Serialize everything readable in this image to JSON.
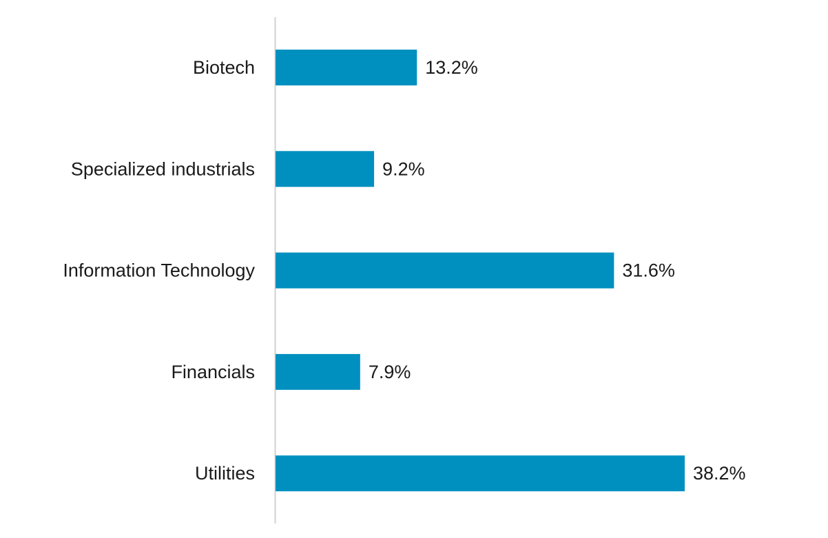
{
  "chart_data": {
    "type": "bar",
    "orientation": "horizontal",
    "categories": [
      "Biotech",
      "Specialized industrials",
      "Information Technology",
      "Financials",
      "Utilities"
    ],
    "values": [
      13.2,
      9.2,
      31.6,
      7.9,
      38.2
    ],
    "value_labels": [
      "13.2%",
      "9.2%",
      "31.6%",
      "7.9%",
      "38.2%"
    ],
    "unit": "%",
    "title": "",
    "xlabel": "",
    "ylabel": "",
    "xlim": [
      0,
      38.2
    ],
    "grid": false,
    "legend": "none",
    "colors": {
      "bar": "#0090c0",
      "axis": "#d0d0d0",
      "text": "#1a1a1a"
    }
  }
}
